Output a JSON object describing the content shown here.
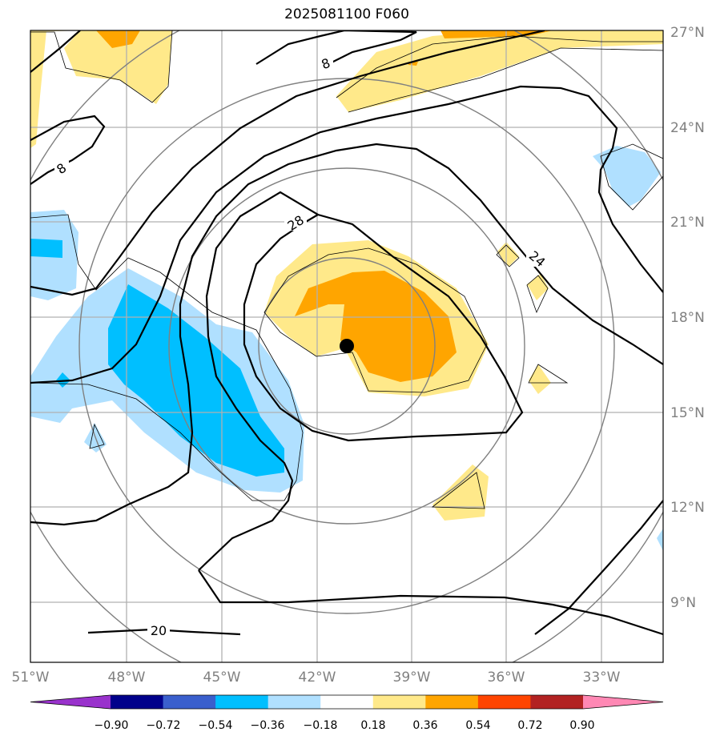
{
  "title": "2025081100 F060",
  "map": {
    "lat_ticks": [
      "27°N",
      "24°N",
      "21°N",
      "18°N",
      "15°N",
      "12°N",
      "9°N"
    ],
    "lon_ticks": [
      "51°W",
      "48°W",
      "45°W",
      "42°W",
      "39°W",
      "36°W",
      "33°W"
    ],
    "contour_labels": [
      "8",
      "8",
      "28",
      "24",
      "20"
    ],
    "center_marker": "storm-center-dot",
    "gridline_color": "#b0b0b0",
    "range_ring_color": "#808080"
  },
  "colorbar": {
    "tick_labels": [
      "−0.90",
      "−0.72",
      "−0.54",
      "−0.36",
      "−0.18",
      "0.18",
      "0.36",
      "0.54",
      "0.72",
      "0.90"
    ],
    "colors": [
      "#9932cc",
      "#00008b",
      "#3a5fcd",
      "#00bfff",
      "#b0e0ff",
      "#ffffff",
      "#ffe98a",
      "#ffa500",
      "#ff4500",
      "#b22222",
      "#ff88b4"
    ],
    "extend": "both"
  }
}
